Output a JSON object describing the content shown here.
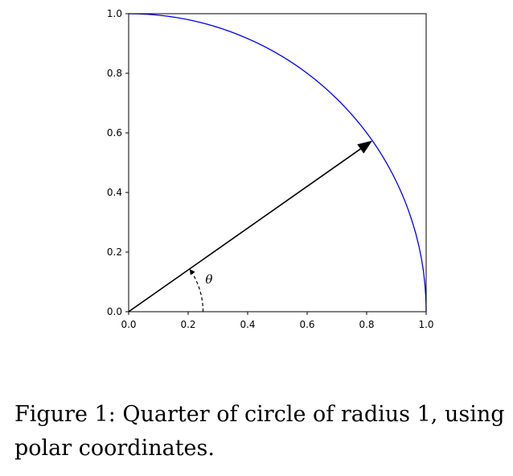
{
  "chart_data": {
    "type": "line",
    "title": "",
    "xlabel": "",
    "ylabel": "",
    "xlim": [
      0.0,
      1.0
    ],
    "ylim": [
      0.0,
      1.0
    ],
    "xticks": [
      "0.0",
      "0.2",
      "0.4",
      "0.6",
      "0.8",
      "1.0"
    ],
    "yticks": [
      "0.0",
      "0.2",
      "0.4",
      "0.6",
      "0.8",
      "1.0"
    ],
    "grid": false,
    "series": [
      {
        "name": "quarter circle",
        "kind": "arc",
        "radius": 1.0,
        "angle_start_deg": 0,
        "angle_end_deg": 90,
        "color": "#0000ff"
      }
    ],
    "annotations": [
      {
        "name": "radius-vector",
        "kind": "arrow",
        "from": [
          0.0,
          0.0
        ],
        "to": [
          0.819,
          0.574
        ],
        "color": "#000000"
      },
      {
        "name": "angle-arc",
        "kind": "dashed-arc",
        "radius": 0.25,
        "angle_start_deg": 0,
        "angle_end_deg": 35,
        "color": "#000000"
      },
      {
        "name": "theta-label",
        "kind": "text",
        "text": "θ",
        "at": [
          0.27,
          0.095
        ]
      }
    ]
  },
  "caption": {
    "text": "Figure 1: Quarter of circle of radius 1, using polar coordinates."
  }
}
